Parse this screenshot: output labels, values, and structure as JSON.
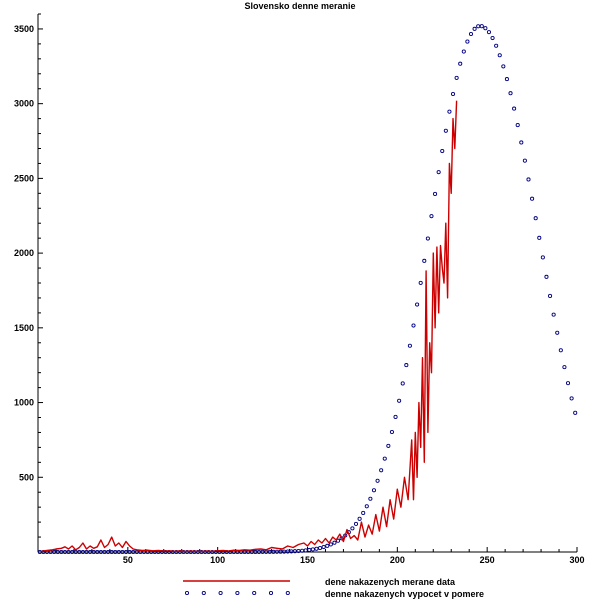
{
  "chart_data": {
    "type": "line",
    "title": "Slovensko denne meranie",
    "xlabel": "",
    "ylabel": "",
    "xlim": [
      0,
      300
    ],
    "ylim": [
      0,
      3600
    ],
    "x_ticks": [
      50,
      100,
      150,
      200,
      250,
      300
    ],
    "y_ticks": [
      500,
      1000,
      1500,
      2000,
      2500,
      3000,
      3500
    ],
    "grid": false,
    "legend_position": "bottom",
    "colors": {
      "measured": "#cc0000",
      "model": "#000080"
    },
    "series": [
      {
        "name": "dene nakazenych merane data",
        "style": "line",
        "x": [
          2,
          5,
          8,
          10,
          13,
          15,
          17,
          19,
          21,
          23,
          25,
          27,
          29,
          31,
          33,
          35,
          37,
          39,
          41,
          43,
          45,
          47,
          49,
          51,
          53,
          55,
          58,
          61,
          64,
          67,
          70,
          73,
          76,
          79,
          82,
          85,
          88,
          91,
          94,
          97,
          100,
          103,
          106,
          109,
          112,
          115,
          118,
          121,
          124,
          127,
          130,
          133,
          136,
          139,
          142,
          145,
          148,
          150,
          152,
          154,
          156,
          158,
          160,
          162,
          164,
          166,
          168,
          170,
          172,
          174,
          176,
          178,
          180,
          182,
          184,
          186,
          188,
          190,
          192,
          194,
          196,
          198,
          200,
          202,
          204,
          206,
          208,
          209,
          210,
          211,
          212,
          213,
          214,
          215,
          216,
          217,
          218,
          219,
          220,
          221,
          222,
          223,
          224,
          225,
          226,
          227,
          228,
          229,
          230,
          231,
          232,
          233
        ],
        "y": [
          5,
          10,
          15,
          20,
          25,
          35,
          20,
          40,
          15,
          30,
          60,
          20,
          40,
          25,
          35,
          80,
          30,
          50,
          100,
          40,
          60,
          30,
          70,
          40,
          20,
          15,
          10,
          12,
          8,
          10,
          6,
          8,
          5,
          7,
          4,
          6,
          5,
          4,
          6,
          5,
          8,
          10,
          6,
          12,
          10,
          15,
          12,
          18,
          20,
          15,
          30,
          25,
          20,
          40,
          30,
          50,
          60,
          40,
          70,
          50,
          80,
          60,
          90,
          60,
          100,
          80,
          120,
          70,
          150,
          90,
          110,
          80,
          200,
          100,
          180,
          120,
          250,
          140,
          300,
          170,
          350,
          220,
          420,
          300,
          500,
          350,
          750,
          350,
          800,
          500,
          1000,
          700,
          1300,
          600,
          1880,
          800,
          1400,
          1200,
          2000,
          1500,
          2040,
          1600,
          2050,
          1900,
          1800,
          2200,
          1700,
          2600,
          2400,
          2900,
          2700,
          3020
        ]
      },
      {
        "name": "denne nakazenych vypocet v pomere",
        "style": "markers",
        "x_start": 1,
        "x_step": 2,
        "peak_x": 246,
        "peak_y": 3520,
        "sigma_left": 28.5,
        "sigma_right": 32.5,
        "end_value": 250
      }
    ]
  }
}
